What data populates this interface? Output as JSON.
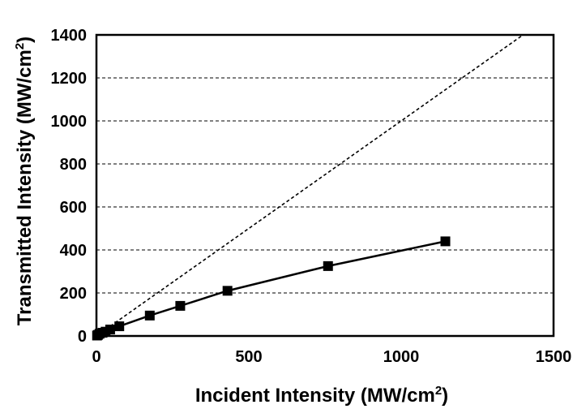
{
  "chart_data": {
    "type": "scatter",
    "title": "",
    "xlabel": "Incident Intensity (MW/cm",
    "xlabel_sup": "2",
    "xlabel_end": ")",
    "ylabel": "Transmitted Intensity (MW/cm",
    "ylabel_sup": "2",
    "ylabel_end": ")",
    "xlim": [
      0,
      1500
    ],
    "ylim": [
      0,
      1400
    ],
    "xticks": [
      "0",
      "500",
      "1000",
      "1500"
    ],
    "yticks": [
      "0",
      "200",
      "400",
      "600",
      "800",
      "1000",
      "1200",
      "1400"
    ],
    "grid": "horizontal dashed",
    "series": [
      {
        "style": "line with square markers",
        "x": [
          2,
          5,
          10,
          20,
          30,
          45,
          75,
          175,
          275,
          430,
          760,
          1145
        ],
        "y": [
          2,
          5,
          10,
          15,
          20,
          30,
          45,
          95,
          140,
          210,
          325,
          440
        ]
      },
      {
        "style": "dashed reference line",
        "x": [
          0,
          1500
        ],
        "y": [
          0,
          1500
        ]
      }
    ]
  }
}
